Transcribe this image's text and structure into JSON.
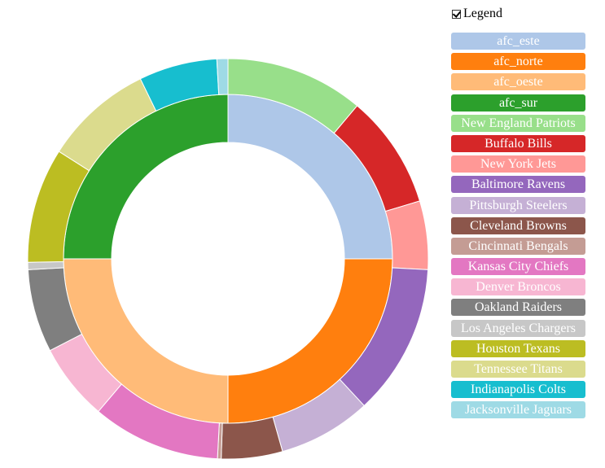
{
  "legend": {
    "toggle_label": "Legend",
    "checked": true
  },
  "chart_data": {
    "type": "pie",
    "subtype": "nested-donut",
    "title": "",
    "inner_ring": [
      {
        "name": "afc_este",
        "value": 25,
        "color": "#aec7e8"
      },
      {
        "name": "afc_norte",
        "value": 25,
        "color": "#ff7f0e"
      },
      {
        "name": "afc_oeste",
        "value": 25,
        "color": "#ffbb78"
      },
      {
        "name": "afc_sur",
        "value": 25,
        "color": "#2ca02c"
      }
    ],
    "outer_ring": [
      {
        "name": "New England Patriots",
        "group": "afc_este",
        "value": 11.3,
        "color": "#98df8a"
      },
      {
        "name": "Buffalo Bills",
        "group": "afc_este",
        "value": 9.3,
        "color": "#d62728"
      },
      {
        "name": "New York Jets",
        "group": "afc_este",
        "value": 5.6,
        "color": "#ff9896"
      },
      {
        "name": "Baltimore Ravens",
        "group": "afc_norte",
        "value": 12.4,
        "color": "#9467bd"
      },
      {
        "name": "Pittsburgh Steelers",
        "group": "afc_norte",
        "value": 7.6,
        "color": "#c5b0d5"
      },
      {
        "name": "Cleveland Browns",
        "group": "afc_norte",
        "value": 5.0,
        "color": "#8c564b"
      },
      {
        "name": "Cincinnati Bengals",
        "group": "afc_norte",
        "value": 0.3,
        "color": "#c49c94"
      },
      {
        "name": "Kansas City Chiefs",
        "group": "afc_oeste",
        "value": 10.5,
        "color": "#e377c2"
      },
      {
        "name": "Denver Broncos",
        "group": "afc_oeste",
        "value": 6.3,
        "color": "#f7b6d2"
      },
      {
        "name": "Oakland Raiders",
        "group": "afc_oeste",
        "value": 6.8,
        "color": "#7f7f7f"
      },
      {
        "name": "Los Angeles Chargers",
        "group": "afc_oeste",
        "value": 0.6,
        "color": "#c7c7c7"
      },
      {
        "name": "Houston Texans",
        "group": "afc_sur",
        "value": 9.4,
        "color": "#bcbd22"
      },
      {
        "name": "Tennessee Titans",
        "group": "afc_sur",
        "value": 8.9,
        "color": "#dbdb8d"
      },
      {
        "name": "Indianapolis Colts",
        "group": "afc_sur",
        "value": 6.4,
        "color": "#17becf"
      },
      {
        "name": "Jacksonville Jaguars",
        "group": "afc_sur",
        "value": 0.9,
        "color": "#9edae5"
      }
    ],
    "legend_entries": [
      {
        "label": "afc_este",
        "color": "#aec7e8"
      },
      {
        "label": "afc_norte",
        "color": "#ff7f0e"
      },
      {
        "label": "afc_oeste",
        "color": "#ffbb78"
      },
      {
        "label": "afc_sur",
        "color": "#2ca02c"
      },
      {
        "label": "New England Patriots",
        "color": "#98df8a"
      },
      {
        "label": "Buffalo Bills",
        "color": "#d62728"
      },
      {
        "label": "New York Jets",
        "color": "#ff9896"
      },
      {
        "label": "Baltimore Ravens",
        "color": "#9467bd"
      },
      {
        "label": "Pittsburgh Steelers",
        "color": "#c5b0d5"
      },
      {
        "label": "Cleveland Browns",
        "color": "#8c564b"
      },
      {
        "label": "Cincinnati Bengals",
        "color": "#c49c94"
      },
      {
        "label": "Kansas City Chiefs",
        "color": "#e377c2"
      },
      {
        "label": "Denver Broncos",
        "color": "#f7b6d2"
      },
      {
        "label": "Oakland Raiders",
        "color": "#7f7f7f"
      },
      {
        "label": "Los Angeles Chargers",
        "color": "#c7c7c7"
      },
      {
        "label": "Houston Texans",
        "color": "#bcbd22"
      },
      {
        "label": "Tennessee Titans",
        "color": "#dbdb8d"
      },
      {
        "label": "Indianapolis Colts",
        "color": "#17becf"
      },
      {
        "label": "Jacksonville Jaguars",
        "color": "#9edae5"
      }
    ],
    "legend_position": "right"
  }
}
